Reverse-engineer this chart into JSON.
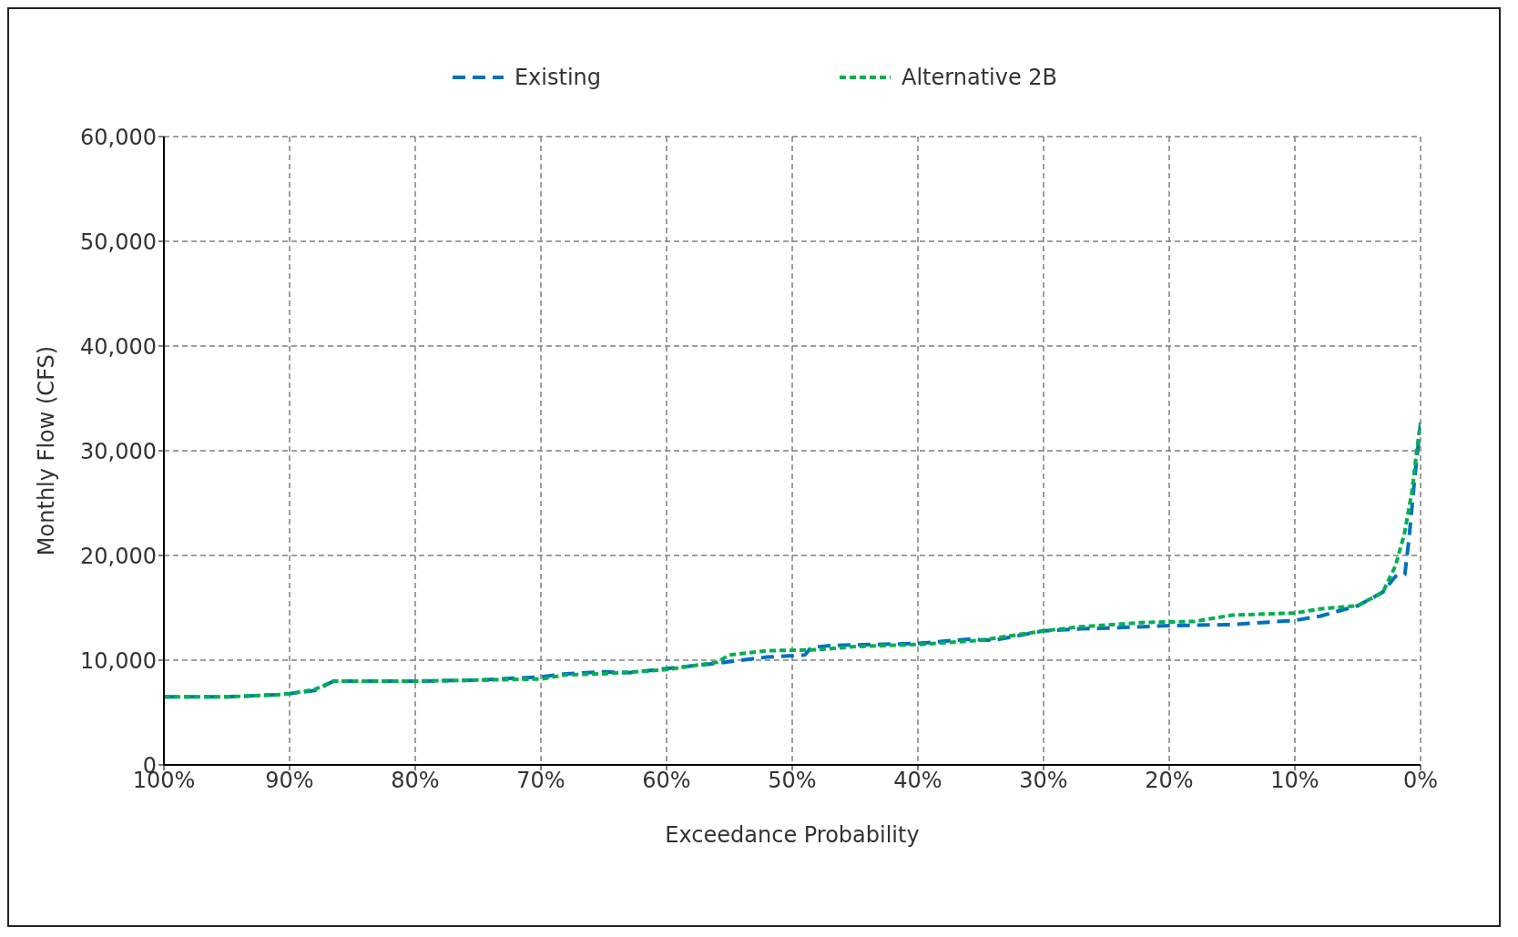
{
  "chart_data": {
    "type": "line",
    "xlabel": "Exceedance Probability",
    "ylabel": "Monthly Flow (CFS)",
    "xlim": [
      100,
      0
    ],
    "xticks": [
      {
        "value": 100,
        "label": "100%"
      },
      {
        "value": 90,
        "label": "90%"
      },
      {
        "value": 80,
        "label": "80%"
      },
      {
        "value": 70,
        "label": "70%"
      },
      {
        "value": 60,
        "label": "60%"
      },
      {
        "value": 50,
        "label": "50%"
      },
      {
        "value": 40,
        "label": "40%"
      },
      {
        "value": 30,
        "label": "30%"
      },
      {
        "value": 20,
        "label": "20%"
      },
      {
        "value": 10,
        "label": "10%"
      },
      {
        "value": 0,
        "label": "0%"
      }
    ],
    "ylim": [
      0,
      60000
    ],
    "yticks": [
      0,
      {
        "value": 10000,
        "label": "10,000"
      },
      {
        "value": 20000,
        "label": "20,000"
      },
      {
        "value": 30000,
        "label": "30,000"
      },
      {
        "value": 40000,
        "label": "40,000"
      },
      {
        "value": 50000,
        "label": "50,000"
      },
      {
        "value": 60000,
        "label": "60,000"
      }
    ],
    "grid": true,
    "legend": "top",
    "marker": "none",
    "series": [
      {
        "name": "Existing",
        "color": "#0070c0",
        "line_style": "dashed",
        "x": [
          100,
          95,
          91,
          90,
          88,
          86.5,
          80,
          75,
          70,
          68,
          65,
          63,
          60,
          56,
          52,
          49,
          48.5,
          47,
          40,
          36,
          34,
          30,
          27,
          24,
          20,
          15,
          10,
          8,
          5,
          3,
          2,
          1.25,
          0.9,
          0.5,
          0
        ],
        "values": [
          6500,
          6500,
          6700,
          6800,
          7100,
          8000,
          8000,
          8100,
          8400,
          8700,
          8900,
          8800,
          9200,
          9700,
          10300,
          10500,
          11200,
          11400,
          11600,
          12000,
          11900,
          12800,
          13000,
          13100,
          13300,
          13400,
          13800,
          14200,
          15200,
          16500,
          18000,
          18200,
          21800,
          27000,
          32600
        ]
      },
      {
        "name": "Alternative 2B",
        "color": "#00b050",
        "line_style": "dotted",
        "x": [
          100,
          95,
          91,
          90,
          88,
          86.5,
          80,
          75,
          70,
          68,
          65,
          60,
          56,
          55,
          52,
          48,
          45,
          40,
          35,
          30,
          27,
          22,
          18,
          15,
          10,
          8,
          5,
          3,
          2,
          1.3,
          0.7,
          0.3,
          0
        ],
        "values": [
          6500,
          6500,
          6700,
          6800,
          7200,
          8000,
          8000,
          8100,
          8200,
          8600,
          8700,
          9100,
          9800,
          10500,
          10900,
          11000,
          11300,
          11500,
          11900,
          12800,
          13200,
          13600,
          13700,
          14300,
          14500,
          14900,
          15200,
          16500,
          19000,
          22000,
          26000,
          30000,
          32700
        ]
      }
    ]
  }
}
